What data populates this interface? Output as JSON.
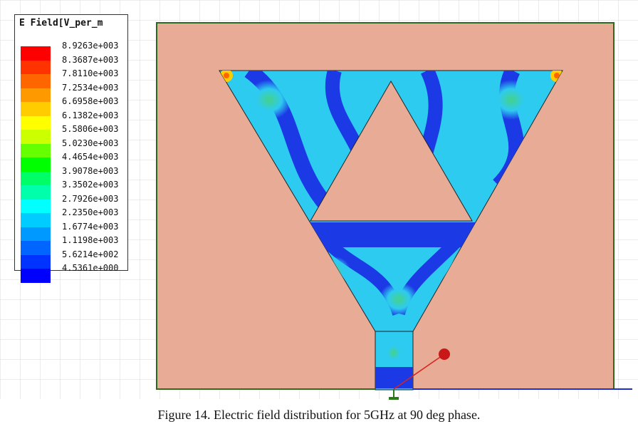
{
  "figure": {
    "caption": "Figure 14. Electric field distribution for 5GHz at 90 deg phase.",
    "legend": {
      "title": "E Field[V_per_m",
      "entries": [
        {
          "label": "8.9263e+003",
          "color": "#ff0000"
        },
        {
          "label": "8.3687e+003",
          "color": "#ff3300"
        },
        {
          "label": "7.8110e+003",
          "color": "#ff6600"
        },
        {
          "label": "7.2534e+003",
          "color": "#ff9900"
        },
        {
          "label": "6.6958e+003",
          "color": "#ffcc00"
        },
        {
          "label": "6.1382e+003",
          "color": "#ffff00"
        },
        {
          "label": "5.5806e+003",
          "color": "#ccff00"
        },
        {
          "label": "5.0230e+003",
          "color": "#66ff00"
        },
        {
          "label": "4.4654e+003",
          "color": "#00ff00"
        },
        {
          "label": "3.9078e+003",
          "color": "#00ff66"
        },
        {
          "label": "3.3502e+003",
          "color": "#00ffaa"
        },
        {
          "label": "2.7926e+003",
          "color": "#00ffff"
        },
        {
          "label": "2.2350e+003",
          "color": "#00ccff"
        },
        {
          "label": "1.6774e+003",
          "color": "#0099ff"
        },
        {
          "label": "1.1198e+003",
          "color": "#0066ff"
        },
        {
          "label": "5.6214e+002",
          "color": "#0033ff"
        },
        {
          "label": "4.5361e+000",
          "color": "#0000ff"
        }
      ]
    },
    "colors": {
      "substrate": "#e8ab96",
      "grid": "#d0d0d0",
      "field_low": "#1c39e6",
      "field_mid": "#2ecbf0",
      "field_high": "#43d28a",
      "outline": "#222222",
      "axis_x": "#d92020",
      "ground_line": "#2030d0",
      "port": "#2a7a1a"
    }
  }
}
